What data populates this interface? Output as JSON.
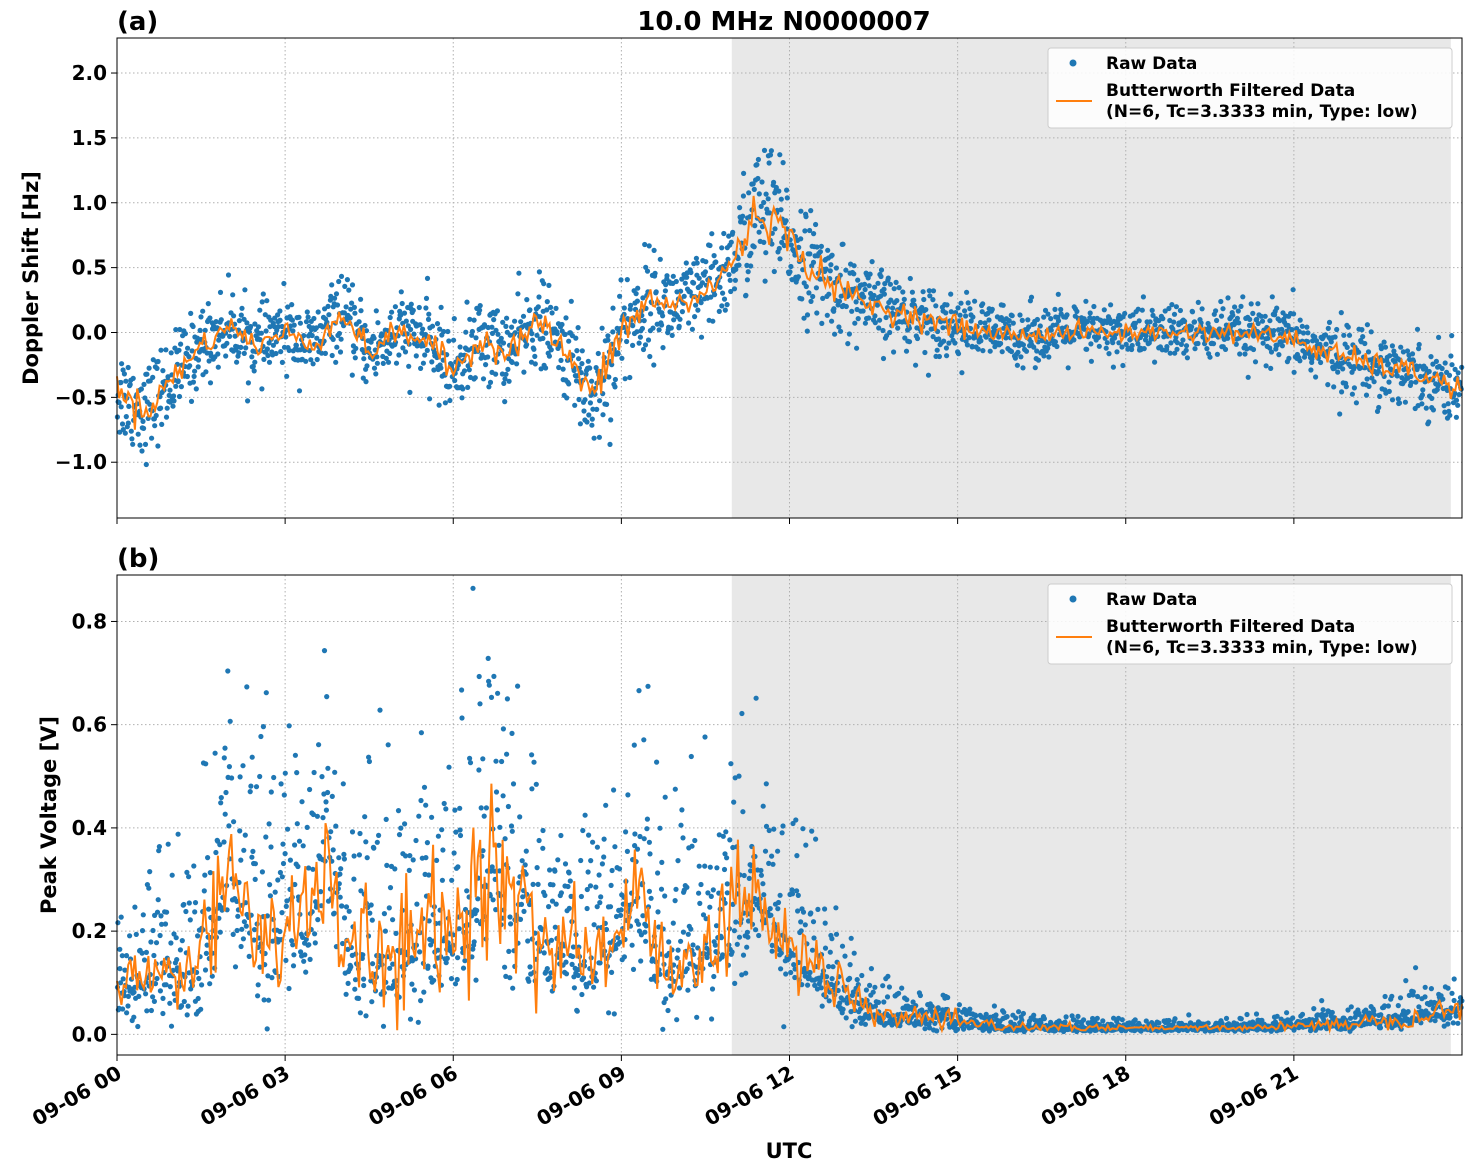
{
  "chart_data": [
    {
      "type": "scatter",
      "panel_label": "(a)",
      "title": "10.0 MHz N0000007",
      "xlabel": "",
      "ylabel": "Doppler Shift [Hz]",
      "xlim_hours": [
        0,
        24
      ],
      "ylim": [
        -1.43,
        2.27
      ],
      "yticks": [
        -1.0,
        -0.5,
        0.0,
        0.5,
        1.0,
        1.5,
        2.0
      ],
      "ytick_labels": [
        "−1.0",
        "−0.5",
        "0.0",
        "0.5",
        "1.0",
        "1.5",
        "2.0"
      ],
      "grid": true,
      "legend_position": "top-right",
      "shaded_region_hours": [
        10.97,
        23.8
      ],
      "series": [
        {
          "name": "Raw Data",
          "kind": "scatter",
          "color": "#1f77b4"
        },
        {
          "name": "Butterworth Filtered Data",
          "name_line2": "(N=6, Tc=3.3333 min, Type: low)",
          "kind": "line",
          "color": "#ff7f0e"
        }
      ],
      "filtered_trend": {
        "x": [
          0,
          0.5,
          1,
          1.5,
          2,
          2.5,
          3,
          3.5,
          4,
          4.5,
          5,
          5.5,
          6,
          6.5,
          7,
          7.5,
          8,
          8.5,
          9,
          9.5,
          10,
          10.5,
          11,
          11.25,
          11.5,
          11.75,
          12,
          12.5,
          13,
          13.5,
          14,
          14.5,
          15,
          15.5,
          16,
          17,
          18,
          19,
          20,
          21,
          21.5,
          22,
          22.5,
          23,
          23.5,
          24
        ],
        "y": [
          -0.45,
          -0.6,
          -0.35,
          -0.1,
          0.05,
          -0.1,
          0.0,
          -0.1,
          0.15,
          -0.15,
          0.0,
          -0.05,
          -0.3,
          -0.05,
          -0.15,
          0.1,
          -0.15,
          -0.5,
          0.0,
          0.25,
          0.2,
          0.3,
          0.55,
          0.8,
          0.95,
          0.85,
          0.7,
          0.45,
          0.3,
          0.2,
          0.15,
          0.1,
          0.05,
          0.0,
          -0.02,
          0.0,
          0.0,
          0.0,
          0.0,
          -0.05,
          -0.15,
          -0.2,
          -0.25,
          -0.3,
          -0.35,
          -0.45
        ]
      },
      "raw_spread": {
        "x": [
          0,
          2,
          4,
          6,
          8,
          8.5,
          10,
          11,
          11.5,
          12,
          13,
          14,
          15,
          16,
          18,
          20,
          21,
          22,
          24
        ],
        "y": [
          0.35,
          0.25,
          0.25,
          0.3,
          0.3,
          0.45,
          0.3,
          0.35,
          0.55,
          0.4,
          0.3,
          0.25,
          0.22,
          0.2,
          0.2,
          0.2,
          0.22,
          0.25,
          0.25
        ]
      }
    },
    {
      "type": "scatter",
      "panel_label": "(b)",
      "title": "",
      "xlabel": "UTC",
      "ylabel": "Peak Voltage [V]",
      "xlim_hours": [
        0,
        24
      ],
      "ylim": [
        -0.04,
        0.89
      ],
      "yticks": [
        0.0,
        0.2,
        0.4,
        0.6,
        0.8
      ],
      "ytick_labels": [
        "0.0",
        "0.2",
        "0.4",
        "0.6",
        "0.8"
      ],
      "xticks_hours": [
        0,
        3,
        6,
        9,
        12,
        15,
        18,
        21
      ],
      "xtick_labels": [
        "09-06 00",
        "09-06 03",
        "09-06 06",
        "09-06 09",
        "09-06 12",
        "09-06 15",
        "09-06 18",
        "09-06 21"
      ],
      "grid": true,
      "legend_position": "top-right",
      "shaded_region_hours": [
        10.97,
        23.8
      ],
      "series": [
        {
          "name": "Raw Data",
          "kind": "scatter",
          "color": "#1f77b4"
        },
        {
          "name": "Butterworth Filtered Data",
          "name_line2": "(N=6, Tc=3.3333 min, Type: low)",
          "kind": "line",
          "color": "#ff7f0e"
        }
      ],
      "filtered_trend": {
        "x": [
          0,
          0.5,
          1,
          1.5,
          1.75,
          2,
          2.5,
          3,
          3.5,
          3.75,
          4,
          4.5,
          5,
          5.5,
          6,
          6.5,
          6.75,
          7,
          7.5,
          8,
          8.5,
          9,
          9.25,
          9.5,
          10,
          10.5,
          11,
          11.5,
          12,
          12.5,
          13,
          13.25,
          13.5,
          14,
          14.5,
          15,
          16,
          17,
          18,
          19,
          20,
          21,
          22,
          23,
          23.5,
          24
        ],
        "y": [
          0.08,
          0.12,
          0.12,
          0.14,
          0.25,
          0.32,
          0.22,
          0.2,
          0.22,
          0.35,
          0.18,
          0.15,
          0.16,
          0.18,
          0.2,
          0.3,
          0.35,
          0.25,
          0.2,
          0.18,
          0.15,
          0.2,
          0.3,
          0.17,
          0.15,
          0.18,
          0.22,
          0.28,
          0.17,
          0.12,
          0.08,
          0.05,
          0.04,
          0.035,
          0.03,
          0.022,
          0.015,
          0.012,
          0.012,
          0.012,
          0.013,
          0.016,
          0.022,
          0.03,
          0.045,
          0.05
        ]
      },
      "raw_spread": {
        "x": [
          0,
          2,
          4,
          6,
          6.75,
          8,
          10,
          11,
          12,
          13,
          13.25,
          14,
          15,
          16,
          18,
          20,
          21,
          22,
          24
        ],
        "y": [
          0.12,
          0.3,
          0.22,
          0.25,
          0.35,
          0.22,
          0.22,
          0.25,
          0.16,
          0.1,
          0.06,
          0.04,
          0.03,
          0.02,
          0.012,
          0.012,
          0.015,
          0.025,
          0.05
        ]
      }
    }
  ]
}
